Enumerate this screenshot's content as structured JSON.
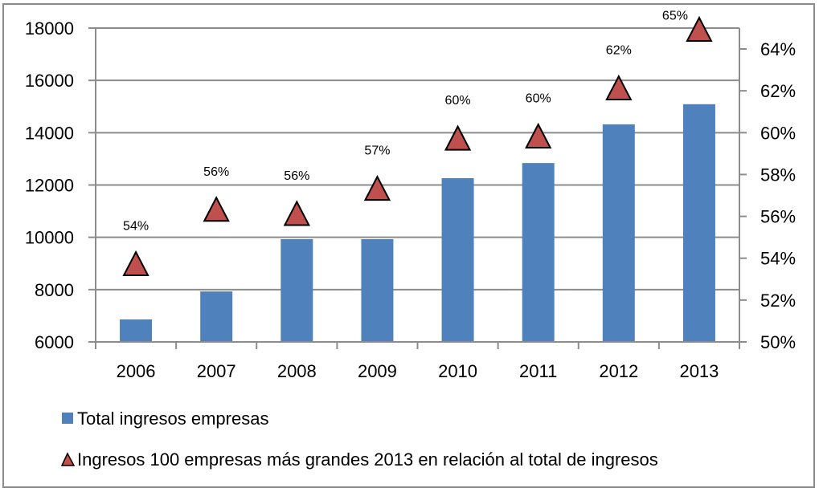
{
  "chart_data": {
    "type": "bar",
    "title": "",
    "categories": [
      "2006",
      "2007",
      "2008",
      "2009",
      "2010",
      "2011",
      "2012",
      "2013"
    ],
    "series": [
      {
        "name": "Total ingresos empresas",
        "type": "bar",
        "axis": "left",
        "color": "#4F81BD",
        "values": [
          6860,
          7930,
          9930,
          9930,
          12260,
          12840,
          14320,
          15090
        ]
      },
      {
        "name": "Ingresos 100 empresas más grandes 2013 en relación al total de ingresos",
        "type": "scatter",
        "marker": "triangle",
        "axis": "right",
        "color": "#C0504D",
        "values": [
          53.7,
          56.3,
          56.1,
          57.3,
          59.7,
          59.8,
          62.1,
          64.9
        ],
        "data_labels": [
          "54%",
          "56%",
          "56%",
          "57%",
          "60%",
          "60%",
          "62%",
          "65%"
        ]
      }
    ],
    "left_axis": {
      "ylim": [
        6000,
        18000
      ],
      "ticks": [
        "6000",
        "8000",
        "10000",
        "12000",
        "14000",
        "16000",
        "18000"
      ]
    },
    "right_axis": {
      "ylim": [
        50,
        64
      ],
      "ticks": [
        "50%",
        "52%",
        "54%",
        "56%",
        "58%",
        "60%",
        "62%",
        "64%"
      ]
    },
    "grid": true,
    "legend_position": "bottom-left",
    "xlabel": "",
    "ylabel": ""
  }
}
